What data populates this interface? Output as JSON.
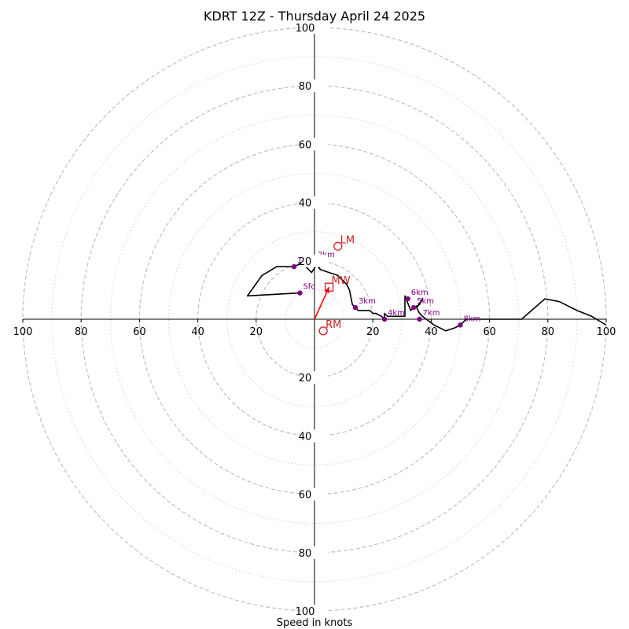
{
  "chart_data": {
    "type": "hodograph",
    "title": "KDRT 12Z - Thursday April 24 2025",
    "xlabel": "Speed in knots",
    "rmax": 100,
    "rings_major": [
      20,
      40,
      60,
      80,
      100
    ],
    "rings_minor": [
      10,
      30,
      50,
      70,
      90
    ],
    "x_tick_labels": [
      "100",
      "80",
      "60",
      "40",
      "20",
      "20",
      "40",
      "60",
      "80",
      "100"
    ],
    "y_tick_labels": [
      "100",
      "80",
      "60",
      "40",
      "20",
      "20",
      "40",
      "60",
      "80",
      "100"
    ],
    "x_tick_values": [
      -100,
      -80,
      -60,
      -40,
      -20,
      20,
      40,
      60,
      80,
      100
    ],
    "y_tick_values": [
      100,
      80,
      60,
      40,
      20,
      -20,
      -40,
      -60,
      -80,
      -100
    ],
    "grid": true,
    "colors": {
      "trace": "#000000",
      "height_markers": "#800080",
      "storm_motion": "#cc2222",
      "bunkers_vector": "#ff0000",
      "grid": "#bbbbbb"
    },
    "trace_uv": [
      [
        -5,
        9
      ],
      [
        -23,
        8
      ],
      [
        -18,
        15
      ],
      [
        -13,
        18
      ],
      [
        -7,
        18
      ],
      [
        -5,
        19
      ],
      [
        -3,
        18
      ],
      [
        -1,
        16
      ],
      [
        1,
        19
      ],
      [
        2,
        17
      ],
      [
        1.5,
        18
      ],
      [
        0,
        19.5
      ],
      [
        2,
        17
      ],
      [
        5,
        16
      ],
      [
        8,
        15
      ],
      [
        11,
        12
      ],
      [
        12,
        10
      ],
      [
        13,
        5
      ],
      [
        15,
        3
      ],
      [
        19,
        3
      ],
      [
        20,
        2
      ],
      [
        21,
        2
      ],
      [
        23,
        1
      ],
      [
        24,
        0
      ],
      [
        24,
        2
      ],
      [
        25,
        1
      ],
      [
        28,
        1
      ],
      [
        30,
        1
      ],
      [
        31,
        1
      ],
      [
        31,
        8
      ],
      [
        33,
        3
      ],
      [
        34,
        4
      ],
      [
        36,
        5
      ],
      [
        37,
        7
      ],
      [
        35,
        4
      ],
      [
        36,
        2
      ],
      [
        37,
        1
      ],
      [
        41,
        -2
      ],
      [
        45,
        -4
      ],
      [
        48,
        -3
      ],
      [
        50,
        -2
      ],
      [
        52,
        0
      ],
      [
        58,
        0
      ],
      [
        65,
        0
      ],
      [
        71,
        0
      ],
      [
        79,
        7
      ],
      [
        84,
        6
      ],
      [
        90,
        3
      ],
      [
        95,
        1
      ],
      [
        100,
        -2
      ]
    ],
    "height_markers": [
      {
        "label": "Sfc",
        "u": -5,
        "v": 9
      },
      {
        "label": "1km",
        "u": -7,
        "v": 18
      },
      {
        "label": "2km",
        "u": 0,
        "v": 20
      },
      {
        "label": "3km",
        "u": 14,
        "v": 4
      },
      {
        "label": "4km",
        "u": 24,
        "v": 0
      },
      {
        "label": "5km",
        "u": 34,
        "v": 4
      },
      {
        "label": "6km",
        "u": 32,
        "v": 7
      },
      {
        "label": "7km",
        "u": 36,
        "v": 0
      },
      {
        "label": "8km",
        "u": 50,
        "v": -2
      }
    ],
    "storm_motion": {
      "LM": {
        "u": 8,
        "v": 25
      },
      "MW": {
        "u": 5,
        "v": 11
      },
      "RM": {
        "u": 3,
        "v": -4
      }
    },
    "bunkers_vector": {
      "from": [
        0,
        0
      ],
      "to": [
        5,
        11
      ]
    }
  }
}
